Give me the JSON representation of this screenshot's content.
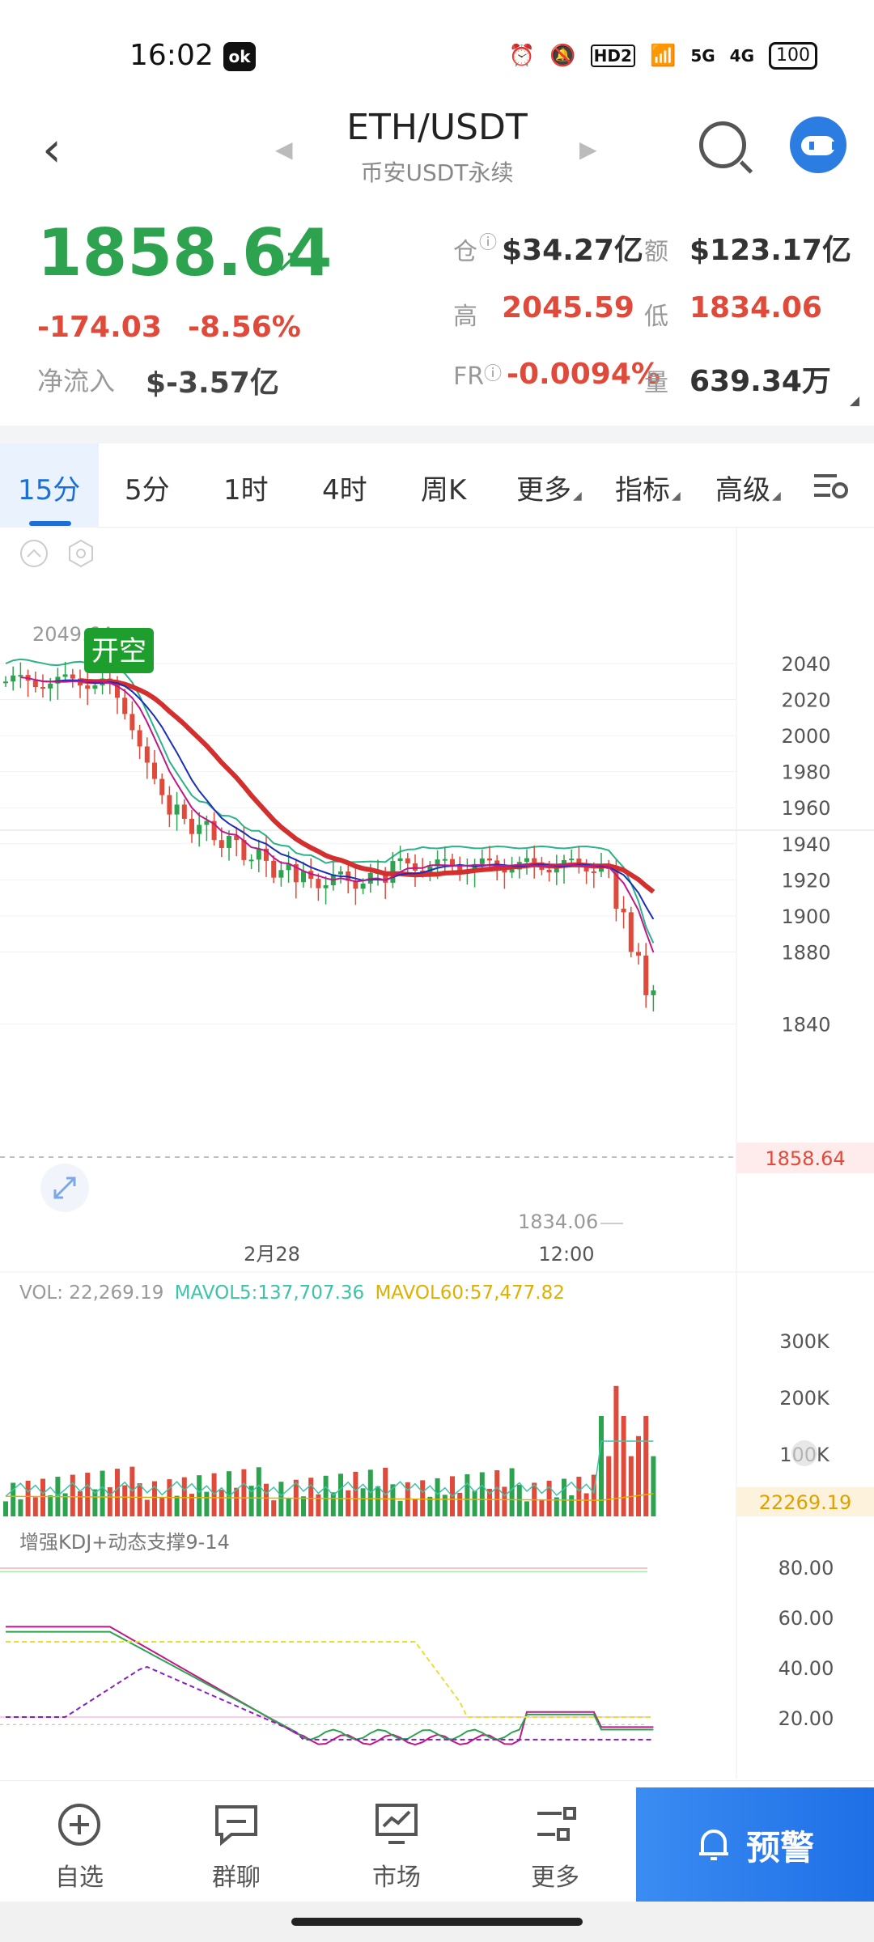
{
  "status": {
    "time": "16:02",
    "app_icon_text": "ok",
    "net1": "HD2",
    "net2": "5G",
    "net3": "4G",
    "battery": "100"
  },
  "header": {
    "pair": "ETH/USDT",
    "subtitle": "币安USDT永续"
  },
  "ticker": {
    "price": "1858.64",
    "change": "-174.03",
    "change_pct": "-8.56%",
    "net_inflow_label": "净流入",
    "net_inflow": "$-3.57亿",
    "oi_label": "仓",
    "oi": "$34.27亿",
    "amount_label": "额",
    "amount": "$123.17亿",
    "high_label": "高",
    "high": "2045.59",
    "low_label": "低",
    "low": "1834.06",
    "fr_label": "FR",
    "fr": "-0.0094%",
    "vol_label": "量",
    "vol": "639.34万"
  },
  "tabs": [
    {
      "label": "15分",
      "active": true
    },
    {
      "label": "5分"
    },
    {
      "label": "1时"
    },
    {
      "label": "4时"
    },
    {
      "label": "周K"
    },
    {
      "label": "更多"
    },
    {
      "label": "指标"
    },
    {
      "label": "高级"
    }
  ],
  "chart_data": {
    "type": "candlestick",
    "price_axis": [
      2040,
      2020,
      2000,
      1980,
      1960,
      1940,
      1920,
      1900,
      1880,
      1840
    ],
    "x_labels": [
      "2月28",
      "12:00"
    ],
    "high_marker": "2049.64",
    "low_marker": "1834.06",
    "last_price": "1858.64",
    "signal_label": "开空",
    "volume": {
      "legend_vol": "VOL: 22,269.19",
      "legend_mavol5": "MAVOL5:137,707.36",
      "legend_mavol60": "MAVOL60:57,477.82",
      "axis": [
        "300K",
        "200K",
        "100K"
      ],
      "last": "22269.19"
    },
    "kdj": {
      "title": "增强KDJ+动态支撑9-14",
      "axis": [
        "80.00",
        "60.00",
        "40.00",
        "20.00"
      ]
    },
    "colors": {
      "up": "#2ea34f",
      "down": "#e04a3a",
      "ma_red": "#d42f2f",
      "ma_blue": "#1a2fb8",
      "ma_magenta": "#c0168a",
      "ma_teal": "#2bb287",
      "mavol60": "#e0b000",
      "mavol5": "#3cc4a8"
    }
  },
  "nav": {
    "items": [
      {
        "label": "自选",
        "icon": "add-circle-icon"
      },
      {
        "label": "群聊",
        "icon": "chat-icon"
      },
      {
        "label": "市场",
        "icon": "market-icon"
      },
      {
        "label": "更多",
        "icon": "more-icon"
      }
    ],
    "alert_label": "预警"
  }
}
